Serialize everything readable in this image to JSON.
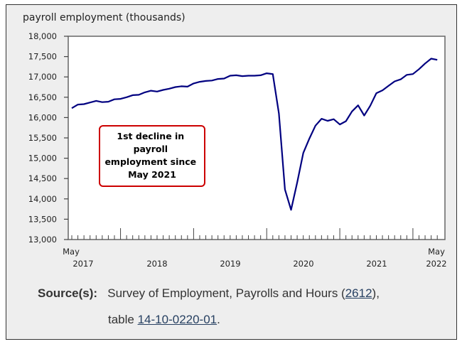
{
  "chart_data": {
    "type": "line",
    "title": "payroll employment (thousands)",
    "xlabel": "",
    "ylabel": "payroll employment (thousands)",
    "ylim": [
      13000,
      18000
    ],
    "yticks": [
      "18,000",
      "17,500",
      "17,000",
      "16,500",
      "16,000",
      "15,500",
      "15,000",
      "14,500",
      "14,000",
      "13,500",
      "13,000"
    ],
    "ytick_values": [
      18000,
      17500,
      17000,
      16500,
      16000,
      15500,
      15000,
      14500,
      14000,
      13500,
      13000
    ],
    "x_start": "May 2017",
    "x_end": "May 2022",
    "xtick_labels": {
      "start_month": "May",
      "start_year": "2017",
      "years": [
        "2018",
        "2019",
        "2020",
        "2021"
      ],
      "end_month": "May",
      "end_year": "2022"
    },
    "grid": false,
    "line_color": "#000080",
    "series": [
      {
        "values": [
          16230,
          16320,
          16330,
          16370,
          16410,
          16380,
          16390,
          16450,
          16460,
          16500,
          16550,
          16560,
          16620,
          16660,
          16640,
          16680,
          16710,
          16750,
          16770,
          16760,
          16840,
          16880,
          16900,
          16910,
          16950,
          16960,
          17030,
          17040,
          17020,
          17030,
          17030,
          17040,
          17090,
          17070,
          16100,
          14230,
          13730,
          14400,
          15130,
          15480,
          15800,
          15970,
          15920,
          15960,
          15830,
          15910,
          16150,
          16300,
          16050,
          16290,
          16600,
          16670,
          16780,
          16890,
          16940,
          17050,
          17070,
          17190,
          17330,
          17450,
          17420
        ]
      }
    ],
    "annotation": {
      "lines": [
        "1st decline in",
        "payroll",
        "employment since",
        "May 2021"
      ],
      "border_color": "#cc0000"
    }
  },
  "source": {
    "label": "Source(s):",
    "text_before": "Survey of Employment, Payrolls and Hours (",
    "link1": "2612",
    "text_after": "),",
    "table_prefix": "table ",
    "link2": "14-10-0220-01",
    "end": "."
  }
}
